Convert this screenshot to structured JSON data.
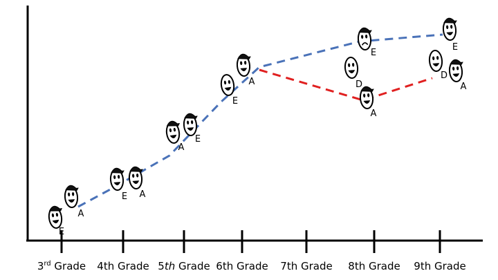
{
  "x_axis": {
    "ticks": [
      {
        "id": "g3",
        "label": "3",
        "sup": "rd",
        "rest": " Grade"
      },
      {
        "id": "g4",
        "label": "4th Grade"
      },
      {
        "id": "g5",
        "label": "5",
        "italic": "th",
        "rest": " Grade"
      },
      {
        "id": "g6",
        "label": "6th Grade"
      },
      {
        "id": "g7",
        "label": "7th Grade"
      },
      {
        "id": "g8",
        "label": "8th Grade"
      },
      {
        "id": "g9",
        "label": "9th Grade"
      }
    ]
  },
  "paths": [
    {
      "name": "blue-path",
      "color": "#4a72b8",
      "style": "dashed",
      "from_grade": "3rd Grade",
      "to_grade": "9th Grade"
    },
    {
      "name": "red-path",
      "color": "#e02020",
      "style": "dashed",
      "from_grade": "6th Grade",
      "to_grade": "9th Grade"
    }
  ],
  "characters": {
    "letters": [
      "A",
      "E",
      "D"
    ],
    "faces": [
      {
        "grade": "3rd Grade",
        "letter": "E",
        "cap": true,
        "mood": "happy"
      },
      {
        "grade": "3rd Grade",
        "letter": "A",
        "cap": true,
        "mood": "happy"
      },
      {
        "grade": "4th Grade",
        "letter": "E",
        "cap": true,
        "mood": "happy"
      },
      {
        "grade": "4th Grade",
        "letter": "A",
        "cap": true,
        "mood": "happy"
      },
      {
        "grade": "5th Grade",
        "letter": "A",
        "cap": true,
        "mood": "happy"
      },
      {
        "grade": "5th Grade",
        "letter": "E",
        "cap": true,
        "mood": "happy"
      },
      {
        "grade": "6th Grade",
        "letter": "E",
        "cap": false,
        "mood": "happy"
      },
      {
        "grade": "6th Grade",
        "letter": "A",
        "cap": true,
        "mood": "happy"
      },
      {
        "grade": "8th Grade",
        "letter": "E",
        "cap": true,
        "mood": "sad"
      },
      {
        "grade": "8th Grade",
        "letter": "D",
        "cap": false,
        "mood": "happy"
      },
      {
        "grade": "8th Grade",
        "letter": "A",
        "cap": true,
        "mood": "happy"
      },
      {
        "grade": "9th Grade",
        "letter": "E",
        "cap": true,
        "mood": "happy"
      },
      {
        "grade": "9th Grade",
        "letter": "D",
        "cap": false,
        "mood": "happy"
      },
      {
        "grade": "9th Grade",
        "letter": "A",
        "cap": true,
        "mood": "happy"
      }
    ]
  }
}
